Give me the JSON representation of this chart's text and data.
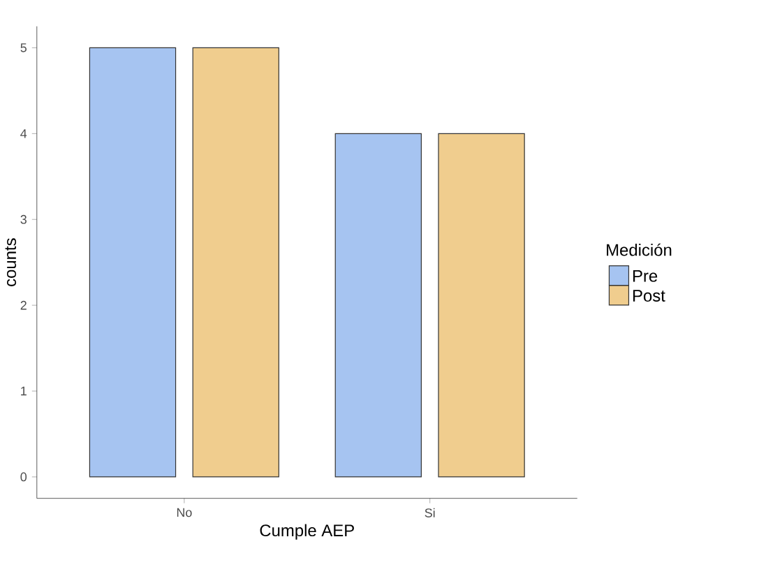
{
  "chart_data": {
    "type": "bar",
    "xlabel": "Cumple AEP",
    "ylabel": "counts",
    "legend_title": "Medición",
    "categories": [
      "No",
      "Si"
    ],
    "series": [
      {
        "name": "Pre",
        "color": "#a6c4f1",
        "values": [
          5,
          4
        ]
      },
      {
        "name": "Post",
        "color": "#f0cd8e",
        "values": [
          5,
          4
        ]
      }
    ],
    "ylim": [
      -0.25,
      5.25
    ],
    "yticks": [
      0,
      1,
      2,
      3,
      4,
      5
    ],
    "legend": "right"
  }
}
